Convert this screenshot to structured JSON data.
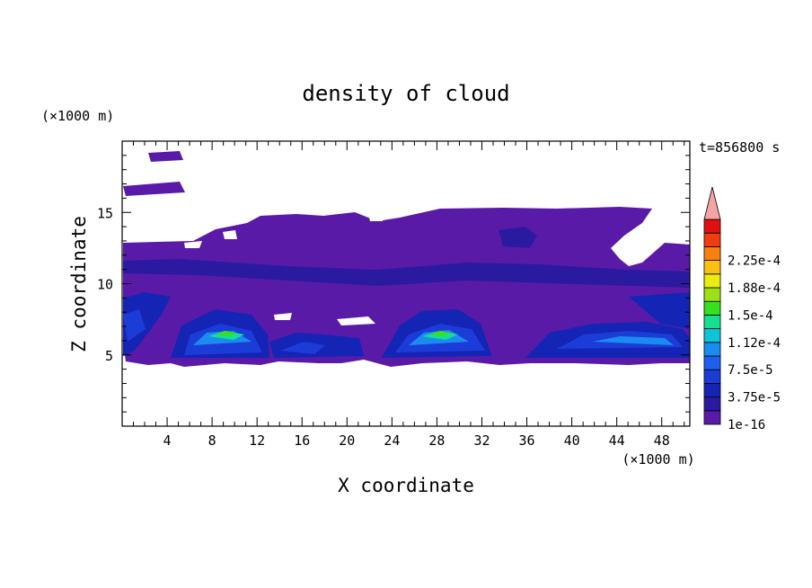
{
  "chart_data": {
    "type": "heatmap",
    "title": "density of cloud",
    "xlabel": "X coordinate",
    "ylabel": "Z coordinate",
    "x_unit": "(×1000 m)",
    "y_unit": "(×1000 m)",
    "time_label": "t=856800 s",
    "xlim": [
      0,
      50.5
    ],
    "ylim": [
      0,
      20
    ],
    "x_ticks": [
      "4",
      "8",
      "12",
      "16",
      "20",
      "24",
      "28",
      "32",
      "36",
      "40",
      "44",
      "48"
    ],
    "x_tick_values": [
      4,
      8,
      12,
      16,
      20,
      24,
      28,
      32,
      36,
      40,
      44,
      48
    ],
    "y_ticks": [
      "5",
      "10",
      "15"
    ],
    "y_tick_values": [
      5,
      10,
      15
    ],
    "colorbar": {
      "levels": [
        1e-16,
        1.875e-05,
        3.75e-05,
        5.625e-05,
        7.5e-05,
        9.375e-05,
        0.0001125,
        0.00013125,
        0.00015,
        0.00016875,
        0.0001875,
        0.00020625,
        0.000225,
        0.00024375
      ],
      "labels": [
        "1e-16",
        "3.75e-5",
        "7.5e-5",
        "1.12e-4",
        "1.5e-4",
        "1.88e-4",
        "2.25e-4"
      ],
      "colors": [
        "#5a1aa8",
        "#2a1aa0",
        "#1424b4",
        "#1c3cd8",
        "#1f5ff0",
        "#1a8cf0",
        "#10c4d8",
        "#14e090",
        "#36e01c",
        "#9ee018",
        "#e8ec10",
        "#fcc010",
        "#f88010",
        "#f03c10",
        "#e01010"
      ],
      "overflow_color": "#f4a4a4"
    }
  }
}
